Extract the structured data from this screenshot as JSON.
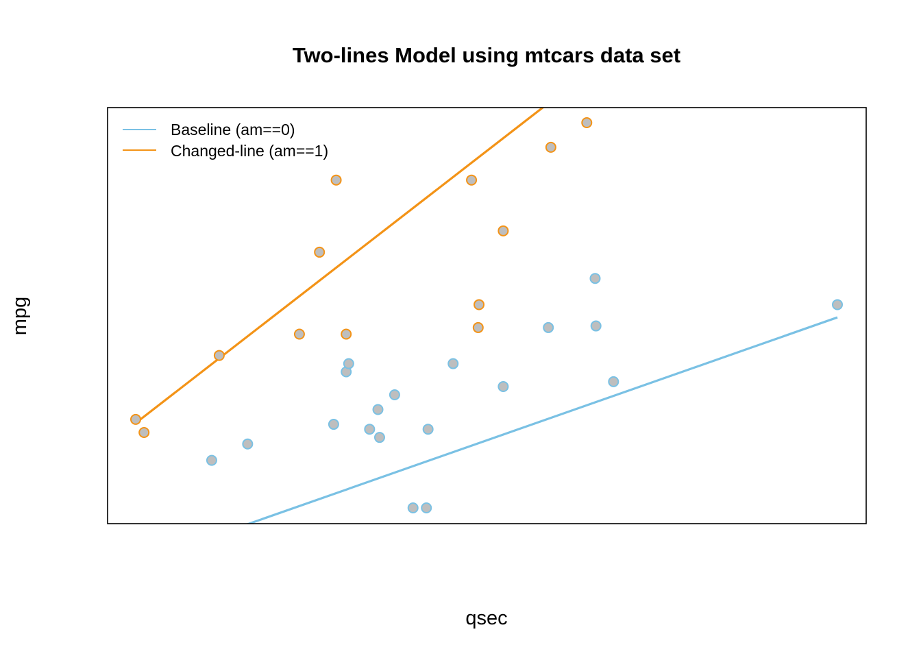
{
  "chart_data": {
    "type": "scatter",
    "title": "Two-lines Model using mtcars data set",
    "xlabel": "qsec",
    "ylabel": "mpg",
    "xlim": [
      14.5,
      22.9
    ],
    "ylim": [
      10.4,
      33.9
    ],
    "axes_shown": false,
    "grid": false,
    "legend_position": "top-left",
    "point_fill": "#BEBEBE",
    "series": [
      {
        "name": "Baseline (am==0)",
        "color": "#7AC1E4",
        "points": [
          [
            19.44,
            21.4
          ],
          [
            17.02,
            18.7
          ],
          [
            20.22,
            18.1
          ],
          [
            15.84,
            14.3
          ],
          [
            20.0,
            24.4
          ],
          [
            22.9,
            22.8
          ],
          [
            18.3,
            19.2
          ],
          [
            18.9,
            17.8
          ],
          [
            17.4,
            16.4
          ],
          [
            17.6,
            17.3
          ],
          [
            18.0,
            15.2
          ],
          [
            17.98,
            10.4
          ],
          [
            17.82,
            10.4
          ],
          [
            17.42,
            14.7
          ],
          [
            20.01,
            21.5
          ],
          [
            16.87,
            15.5
          ],
          [
            17.3,
            15.2
          ],
          [
            15.41,
            13.3
          ],
          [
            17.05,
            19.2
          ]
        ],
        "fit_line": {
          "intercept": -18.9,
          "slope": 1.787,
          "x_range": [
            14.5,
            22.9
          ]
        }
      },
      {
        "name": "Changed-line (am==1)",
        "color": "#F39317",
        "points": [
          [
            16.46,
            21.0
          ],
          [
            17.02,
            21.0
          ],
          [
            18.61,
            22.8
          ],
          [
            19.47,
            32.4
          ],
          [
            18.52,
            30.4
          ],
          [
            19.9,
            33.9
          ],
          [
            18.9,
            27.3
          ],
          [
            16.7,
            26.0
          ],
          [
            16.9,
            30.4
          ],
          [
            14.5,
            15.8
          ],
          [
            15.5,
            19.7
          ],
          [
            14.6,
            15.0
          ],
          [
            18.6,
            21.4
          ]
        ],
        "fit_line": {
          "intercept": -41.7,
          "slope": 3.95,
          "x_range": [
            14.5,
            22.9
          ]
        }
      }
    ]
  }
}
